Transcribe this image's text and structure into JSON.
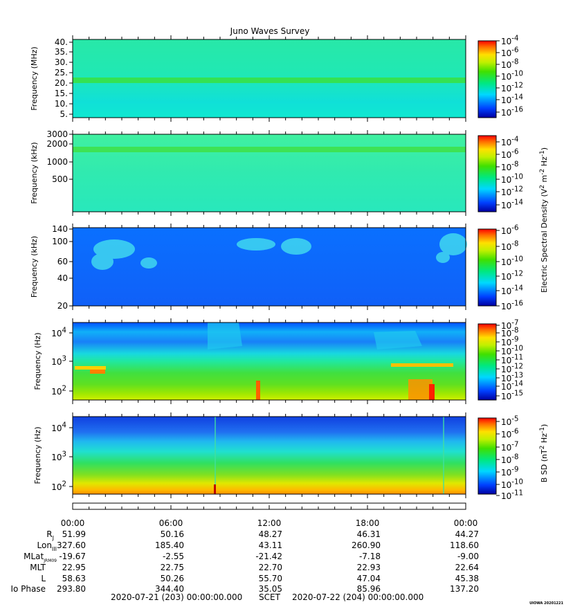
{
  "title": "Juno Waves Survey",
  "footer_mark": "UIOWA 20201221",
  "colors": {
    "frame": "#000000",
    "text": "#000000"
  },
  "chart_data": [
    {
      "type": "heatmap",
      "panel": 1,
      "ylabel": "Frequency (MHz)",
      "yscale": "linear",
      "yticks": [
        "40.",
        "35.",
        "30.",
        "25.",
        "20.",
        "15.",
        "10.",
        "5."
      ],
      "ylim": [
        3,
        41
      ],
      "features": "band near 21 MHz",
      "colorbar": {
        "ticks": [
          "-4",
          "-6",
          "-8",
          "-10",
          "-12",
          "-14",
          "-16"
        ],
        "base": "10"
      }
    },
    {
      "type": "heatmap",
      "panel": 2,
      "ylabel": "Frequency (kHz)",
      "yscale": "log",
      "yticks": [
        "3000",
        "2000",
        "1000",
        "500"
      ],
      "features": "band near 1700 kHz",
      "colorbar": {
        "ticks": [
          "-4",
          "-6",
          "-8",
          "-10",
          "-12",
          "-14"
        ],
        "base": "10"
      }
    },
    {
      "type": "heatmap",
      "panel": 3,
      "ylabel": "Frequency (kHz)",
      "yscale": "log",
      "yticks": [
        "140",
        "100",
        "60",
        "40",
        "20"
      ],
      "colorbar": {
        "ticks": [
          "-6",
          "-8",
          "-10",
          "-12",
          "-14",
          "-16"
        ],
        "base": "10"
      }
    },
    {
      "type": "heatmap",
      "panel": 4,
      "ylabel": "Frequency (Hz)",
      "yscale": "log",
      "yticks": [
        "4",
        "3",
        "2"
      ],
      "tick_base": "10",
      "colorbar": {
        "ticks": [
          "-7",
          "-8",
          "-9",
          "-10",
          "-11",
          "-12",
          "-13",
          "-14",
          "-15"
        ],
        "base": "10"
      }
    },
    {
      "type": "heatmap",
      "panel": 5,
      "ylabel": "Frequency (Hz)",
      "yscale": "log",
      "yticks": [
        "4",
        "3",
        "2"
      ],
      "tick_base": "10",
      "colorbar": {
        "ticks": [
          "-5",
          "-6",
          "-7",
          "-8",
          "-9",
          "-10",
          "-11"
        ],
        "base": "10"
      }
    }
  ],
  "colorbar_labels": {
    "electric": "Electric Spectral Density (V^2 m^-2 Hz^-1)",
    "magnetic": "B SD (nT^2 Hz^-1)",
    "electric_parts": [
      "Electric Spectral Density (V",
      "2",
      " m",
      "-2",
      " Hz",
      "-1",
      ")"
    ],
    "magnetic_parts": [
      "B SD (nT",
      "2",
      " Hz",
      "-1",
      ")"
    ]
  },
  "time_axis": {
    "ticks": [
      "00:00",
      "06:00",
      "12:00",
      "18:00",
      "00:00"
    ]
  },
  "ephemeris": [
    {
      "label": "R",
      "sub": "J",
      "values": [
        "51.99",
        "50.16",
        "48.27",
        "46.31",
        "44.27"
      ]
    },
    {
      "label": "Lon",
      "sub": "III",
      "values": [
        "327.60",
        "185.40",
        "43.11",
        "260.90",
        "118.60"
      ]
    },
    {
      "label": "MLat",
      "sub": "JRM09",
      "values": [
        "-19.67",
        "-2.55",
        "-21.42",
        "-7.18",
        "-9.00"
      ]
    },
    {
      "label": "MLT",
      "sub": "",
      "values": [
        "22.95",
        "22.75",
        "22.70",
        "22.93",
        "22.64"
      ]
    },
    {
      "label": "L",
      "sub": "",
      "values": [
        "58.63",
        "50.26",
        "55.70",
        "47.04",
        "45.38"
      ]
    },
    {
      "label": "Io Phase",
      "sub": "",
      "values": [
        "293.80",
        "344.40",
        "35.05",
        "85.96",
        "137.20"
      ]
    }
  ],
  "scet": {
    "start": "2020-07-21 (203) 00:00:00.000",
    "label": "SCET",
    "end": "2020-07-22 (204) 00:00:00.000"
  }
}
